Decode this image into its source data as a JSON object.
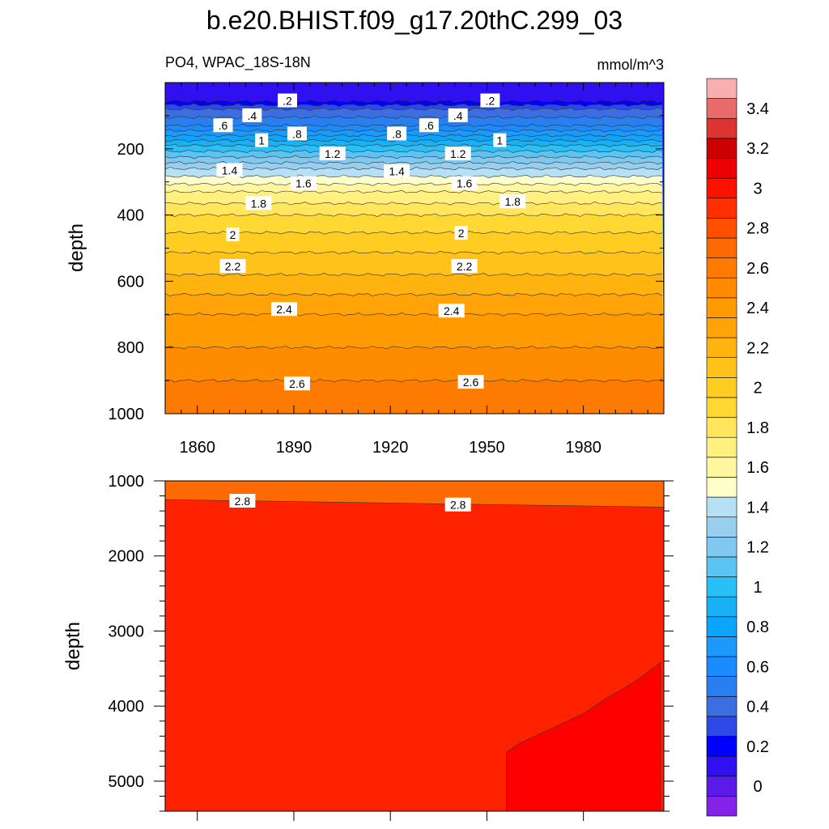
{
  "figure": {
    "title": "b.e20.BHIST.f09_g17.20thC.299_03",
    "subtitle_left": "PO4, WPAC_18S-18N",
    "subtitle_right": "mmol/m^3"
  },
  "colors": {
    "levels": [
      "#8422e8",
      "#5c1ae8",
      "#3010f0",
      "#0000ff",
      "#2e4ae6",
      "#3d6ee0",
      "#2a7ff0",
      "#1a8cff",
      "#1a99ff",
      "#0aa5ff",
      "#1ab0f5",
      "#29bff7",
      "#5cc4f2",
      "#80c8ef",
      "#98cfef",
      "#b5e0f5",
      "#ffffcc",
      "#fff7a0",
      "#fff080",
      "#ffe65c",
      "#ffd833",
      "#ffcc22",
      "#ffc21a",
      "#ffb30f",
      "#ffa308",
      "#ff9a00",
      "#ff8c00",
      "#ff7a00",
      "#ff6a00",
      "#ff5000",
      "#ff3000",
      "#ff1000",
      "#ee0000",
      "#cc0000",
      "#dd3333",
      "#e86a6a",
      "#f7b0b0"
    ],
    "line": "#333333"
  },
  "chart_data": [
    {
      "type": "contour",
      "name": "upper-panel",
      "xlabel": "",
      "ylabel": "depth",
      "xlim": [
        1850,
        2005
      ],
      "ylim": [
        1000,
        0
      ],
      "x_ticks": [
        1860,
        1890,
        1920,
        1950,
        1980
      ],
      "y_ticks": [
        200,
        400,
        600,
        800,
        1000
      ],
      "x_tick_labels": [
        "1860",
        "1890",
        "1920",
        "1950",
        "1980"
      ],
      "y_tick_labels": [
        "200",
        "400",
        "600",
        "800",
        "1000"
      ],
      "contour_interval": 0.1,
      "depth_profile": [
        {
          "depth": 0,
          "value": 0.1
        },
        {
          "depth": 50,
          "value": 0.15
        },
        {
          "depth": 80,
          "value": 0.4
        },
        {
          "depth": 130,
          "value": 0.6
        },
        {
          "depth": 190,
          "value": 1.0
        },
        {
          "depth": 260,
          "value": 1.4
        },
        {
          "depth": 330,
          "value": 1.7
        },
        {
          "depth": 400,
          "value": 1.9
        },
        {
          "depth": 480,
          "value": 2.05
        },
        {
          "depth": 580,
          "value": 2.2
        },
        {
          "depth": 700,
          "value": 2.4
        },
        {
          "depth": 800,
          "value": 2.5
        },
        {
          "depth": 900,
          "value": 2.6
        },
        {
          "depth": 1000,
          "value": 2.68
        }
      ],
      "contour_labels": [
        {
          "text": ".2",
          "year": 1888,
          "depth": 55
        },
        {
          "text": ".2",
          "year": 1951,
          "depth": 55
        },
        {
          "text": ".4",
          "year": 1877,
          "depth": 100
        },
        {
          "text": ".4",
          "year": 1941,
          "depth": 100
        },
        {
          "text": ".6",
          "year": 1868,
          "depth": 130
        },
        {
          "text": ".6",
          "year": 1932,
          "depth": 130
        },
        {
          "text": "1",
          "year": 1880,
          "depth": 175
        },
        {
          "text": "1",
          "year": 1954,
          "depth": 175
        },
        {
          "text": ".8",
          "year": 1891,
          "depth": 155
        },
        {
          "text": ".8",
          "year": 1922,
          "depth": 155
        },
        {
          "text": "1.2",
          "year": 1902,
          "depth": 215
        },
        {
          "text": "1.2",
          "year": 1941,
          "depth": 215
        },
        {
          "text": "1.4",
          "year": 1870,
          "depth": 265
        },
        {
          "text": "1.4",
          "year": 1922,
          "depth": 268
        },
        {
          "text": "1.6",
          "year": 1893,
          "depth": 305
        },
        {
          "text": "1.6",
          "year": 1943,
          "depth": 305
        },
        {
          "text": "1.8",
          "year": 1879,
          "depth": 365
        },
        {
          "text": "1.8",
          "year": 1958,
          "depth": 360
        },
        {
          "text": "2",
          "year": 1871,
          "depth": 460
        },
        {
          "text": "2",
          "year": 1942,
          "depth": 455
        },
        {
          "text": "2.2",
          "year": 1871,
          "depth": 555
        },
        {
          "text": "2.2",
          "year": 1943,
          "depth": 555
        },
        {
          "text": "2.4",
          "year": 1887,
          "depth": 685
        },
        {
          "text": "2.4",
          "year": 1939,
          "depth": 690
        },
        {
          "text": "2.6",
          "year": 1891,
          "depth": 910
        },
        {
          "text": "2.6",
          "year": 1945,
          "depth": 905
        }
      ]
    },
    {
      "type": "contour",
      "name": "lower-panel",
      "xlabel": "",
      "ylabel": "depth",
      "xlim": [
        1850,
        2005
      ],
      "ylim": [
        5400,
        1000
      ],
      "x_ticks": [
        1860,
        1890,
        1920,
        1950,
        1980
      ],
      "y_ticks": [
        1000,
        2000,
        3000,
        4000,
        5000
      ],
      "y_tick_labels": [
        "1000",
        "2000",
        "3000",
        "4000",
        "5000"
      ],
      "regions": [
        {
          "range": "2.7-2.8",
          "color": "#ff6a00",
          "boundary_depth_start": 1250,
          "boundary_depth_end": 1350
        },
        {
          "range": "2.8-2.9",
          "color": "#ff2200"
        },
        {
          "range": "2.9-3.0",
          "color": "#ff0000",
          "boundary": [
            [
              1956,
              5400
            ],
            [
              1956,
              4620
            ],
            [
              1960,
              4500
            ],
            [
              1970,
              4300
            ],
            [
              1980,
              4100
            ],
            [
              1987,
              3900
            ],
            [
              1995,
              3700
            ],
            [
              2000,
              3550
            ],
            [
              2004,
              3420
            ],
            [
              2004,
              5400
            ]
          ]
        }
      ],
      "contour_labels": [
        {
          "text": "2.8",
          "year": 1874,
          "depth": 1270
        },
        {
          "text": "2.8",
          "year": 1941,
          "depth": 1320
        }
      ]
    }
  ],
  "colorbar": {
    "ticks": [
      {
        "value": 0,
        "label": "0"
      },
      {
        "value": 0.2,
        "label": "0.2"
      },
      {
        "value": 0.4,
        "label": "0.4"
      },
      {
        "value": 0.6,
        "label": "0.6"
      },
      {
        "value": 0.8,
        "label": "0.8"
      },
      {
        "value": 1.0,
        "label": "1"
      },
      {
        "value": 1.2,
        "label": "1.2"
      },
      {
        "value": 1.4,
        "label": "1.4"
      },
      {
        "value": 1.6,
        "label": "1.6"
      },
      {
        "value": 1.8,
        "label": "1.8"
      },
      {
        "value": 2.0,
        "label": "2"
      },
      {
        "value": 2.2,
        "label": "2.2"
      },
      {
        "value": 2.4,
        "label": "2.4"
      },
      {
        "value": 2.6,
        "label": "2.6"
      },
      {
        "value": 2.8,
        "label": "2.8"
      },
      {
        "value": 3.0,
        "label": "3"
      },
      {
        "value": 3.2,
        "label": "3.2"
      },
      {
        "value": 3.4,
        "label": "3.4"
      }
    ],
    "min": -0.1,
    "max": 3.6,
    "step": 0.1
  }
}
